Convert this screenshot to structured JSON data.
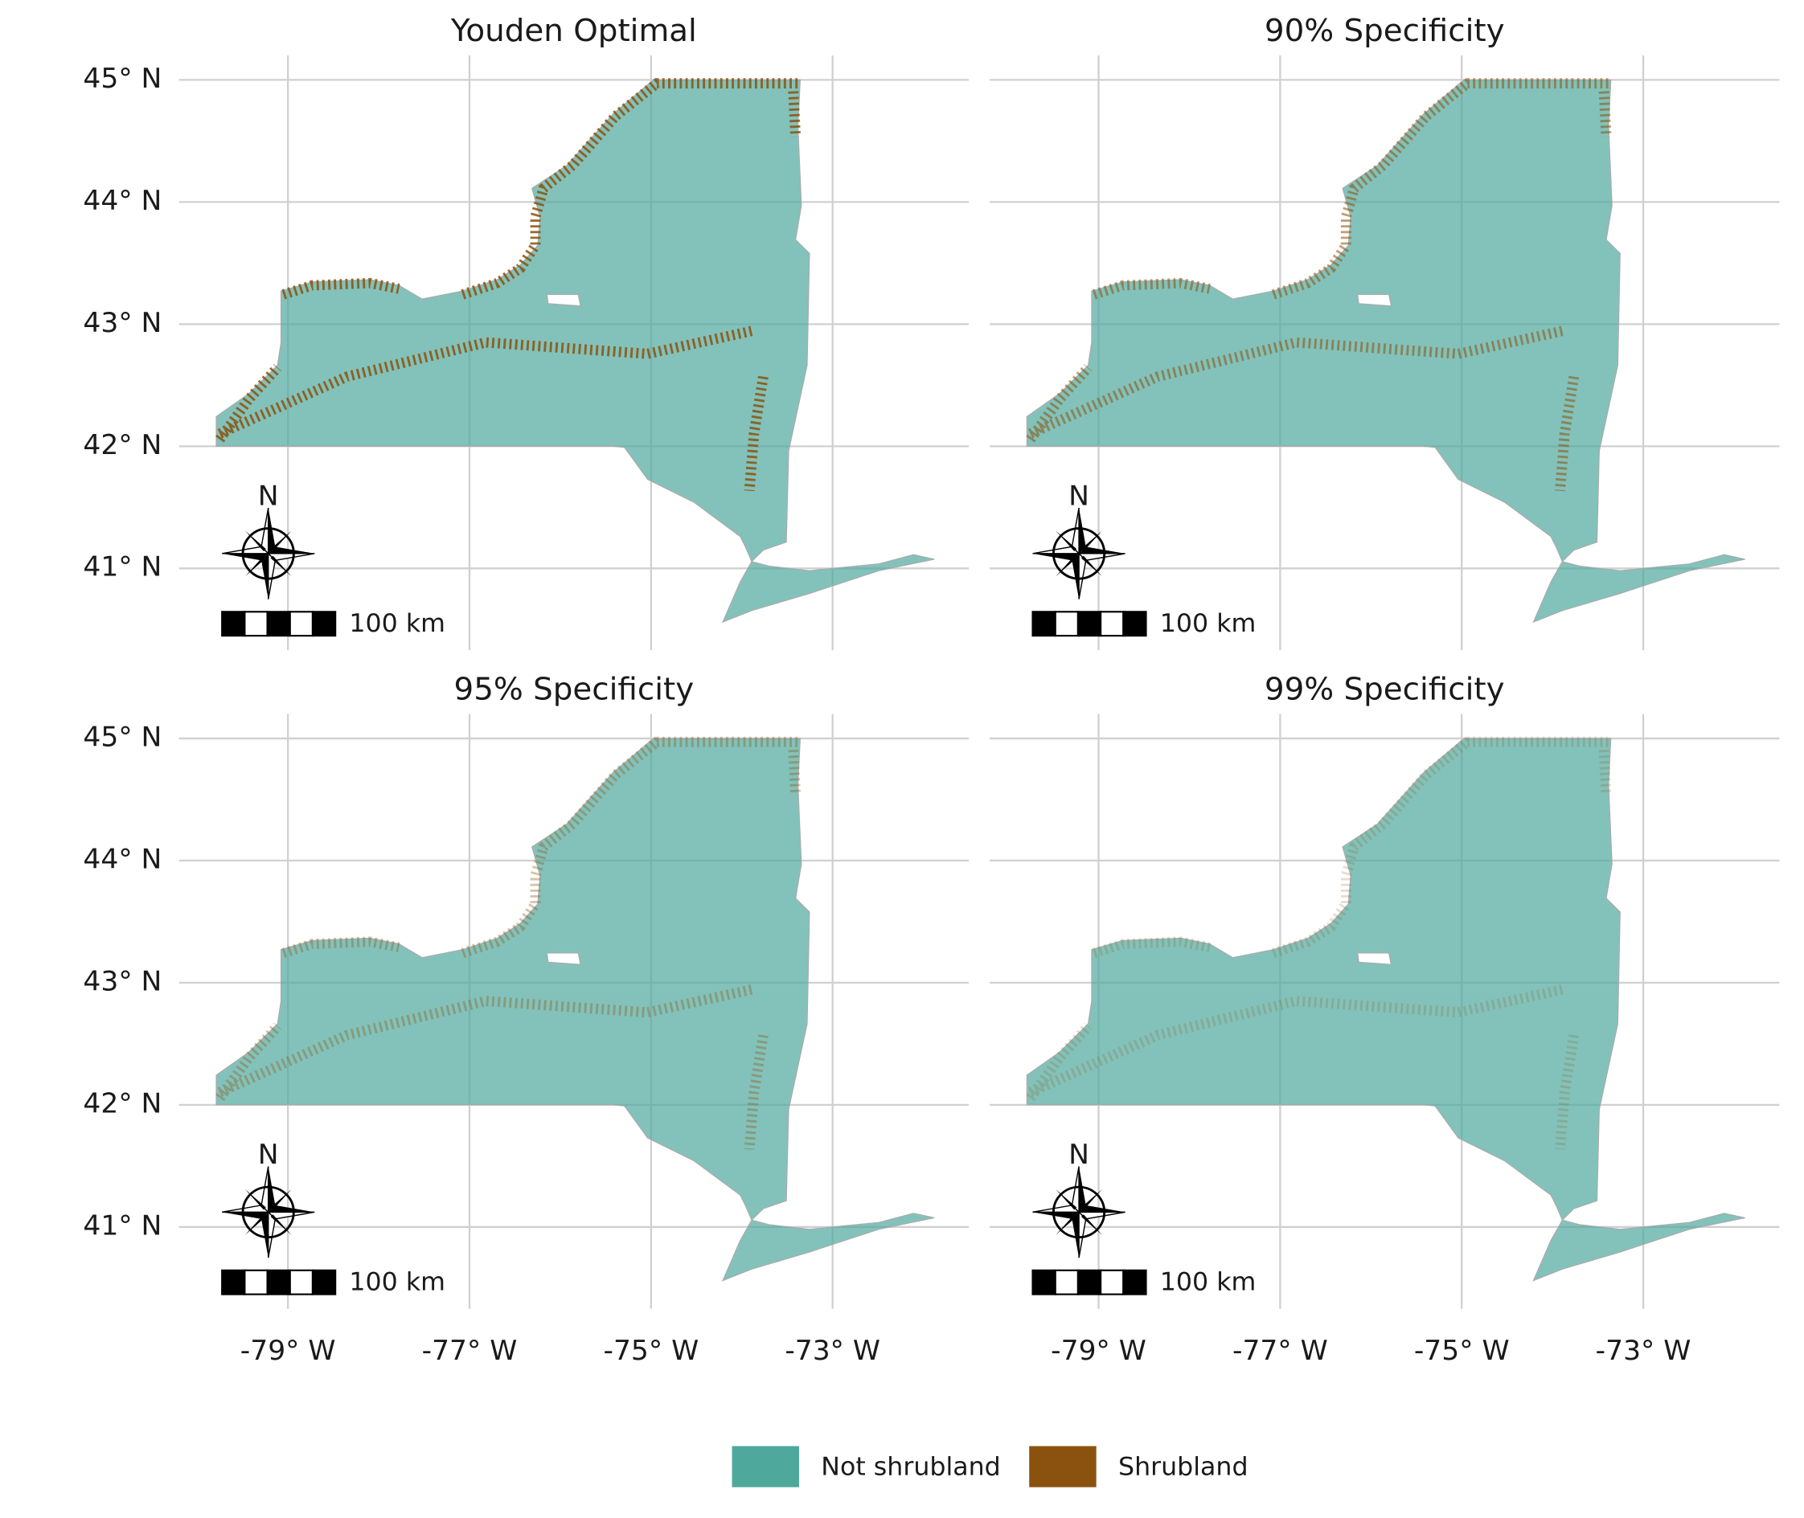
{
  "chart_data": {
    "type": "map",
    "panels": [
      "Youden Optimal",
      "90% Specificity",
      "95% Specificity",
      "99% Specificity"
    ],
    "xlim": [
      -80.2,
      -71.5
    ],
    "ylim": [
      40.33,
      45.2
    ],
    "xticks": [
      {
        "value": -79,
        "label": "-79° W"
      },
      {
        "value": -77,
        "label": "-77° W"
      },
      {
        "value": -75,
        "label": "-75° W"
      },
      {
        "value": -73,
        "label": "-73° W"
      }
    ],
    "yticks": [
      {
        "value": 41,
        "label": "41° N"
      },
      {
        "value": 42,
        "label": "42° N"
      },
      {
        "value": 43,
        "label": "43° N"
      },
      {
        "value": 44,
        "label": "44° N"
      },
      {
        "value": 45,
        "label": "45° N"
      }
    ],
    "grid": true,
    "north_arrow": "N",
    "scale_bar": "100 km",
    "series": [
      {
        "name": "Not shrubland",
        "color": "#4ea89c"
      },
      {
        "name": "Shrubland",
        "color": "#8b520f"
      }
    ],
    "legend": "bottom"
  }
}
